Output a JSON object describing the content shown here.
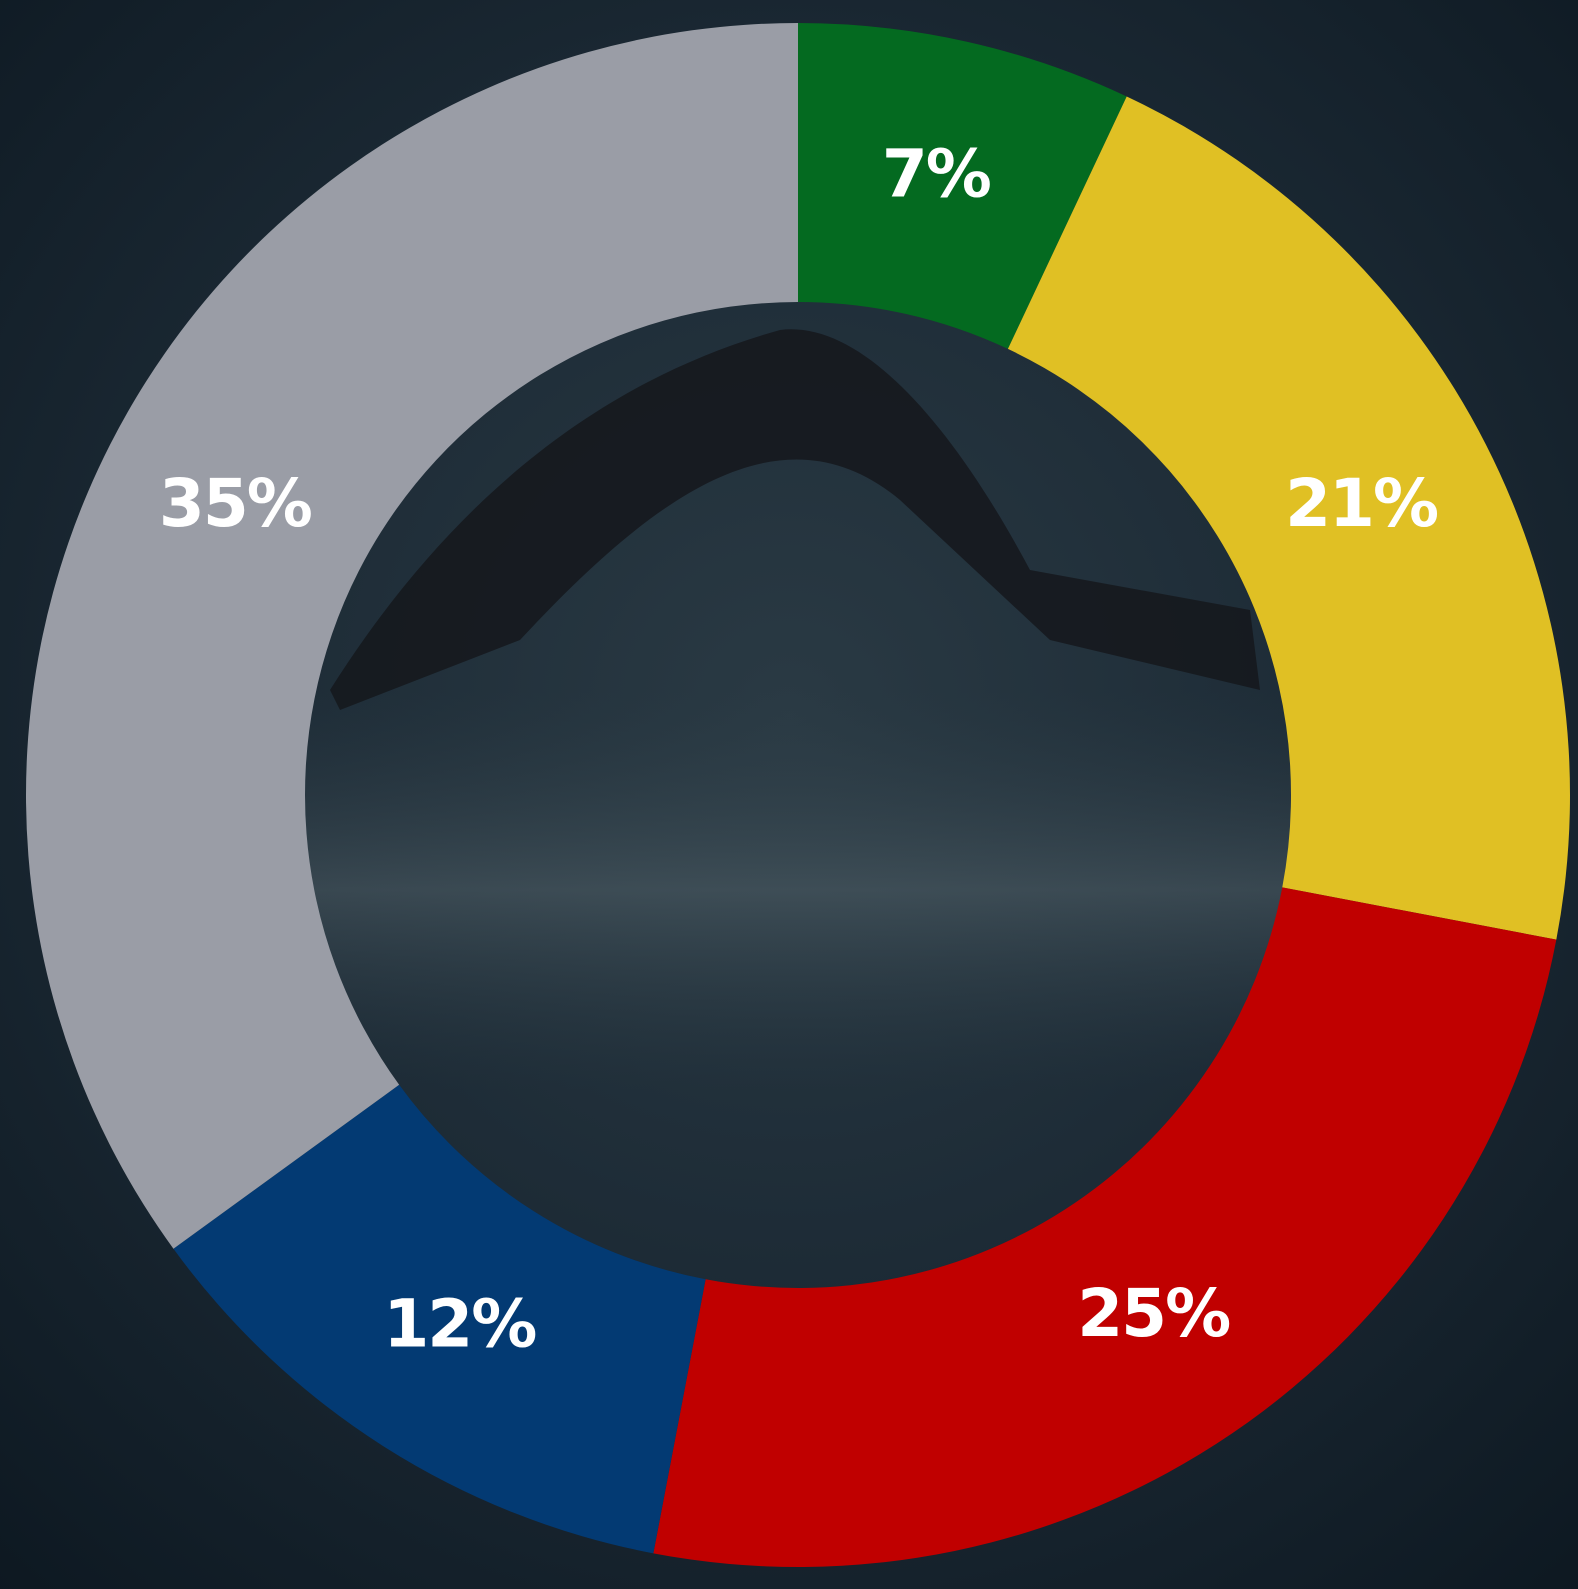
{
  "chart_data": {
    "type": "donut",
    "values": [
      7,
      21,
      25,
      12,
      35
    ],
    "value_labels": [
      "7%",
      "21%",
      "25%",
      "12%",
      "35%"
    ],
    "colors": [
      "#046a20",
      "#e0c024",
      "#c00000",
      "#033a73",
      "#9a9da6"
    ]
  }
}
